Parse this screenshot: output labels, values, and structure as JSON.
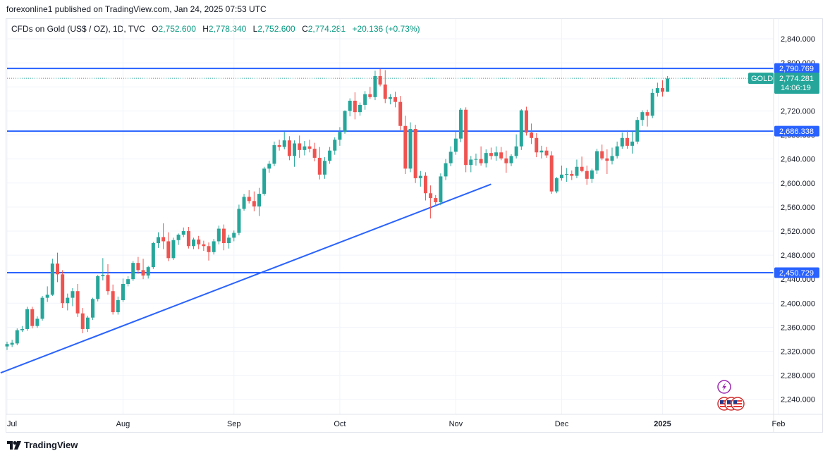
{
  "header": {
    "publisher_text": "forexonline1 published on TradingView.com, Jan 24, 2025 07:53 UTC"
  },
  "legend": {
    "symbol": "CFDs on Gold (US$ / OZ), 1D, TVC",
    "open_label": "O",
    "open": "2,752.600",
    "high_label": "H",
    "high": "2,778.340",
    "low_label": "L",
    "low": "2,752.600",
    "close_label": "C",
    "close": "2,774.281",
    "change": "+20.136 (+0.73%)"
  },
  "footer": {
    "brand": "TradingView"
  },
  "colors": {
    "up": "#26a69a",
    "down": "#ef5350",
    "level_line": "#2962ff",
    "trend_line": "#2962ff",
    "price_tag": "#26a69a",
    "level_tag": "#2962ff"
  },
  "chart_data": {
    "type": "candlestick",
    "symbol": "GOLD",
    "current_price": 2774.281,
    "current_price_label": "2,774.281",
    "countdown": "14:06:19",
    "ylim": [
      2215,
      2873
    ],
    "y_ticks": [
      2240,
      2280,
      2320,
      2360,
      2400,
      2440,
      2480,
      2520,
      2560,
      2600,
      2640,
      2680,
      2720,
      2760,
      2800,
      2840
    ],
    "y_tick_labels": [
      "2,240.000",
      "2,280.000",
      "2,320.000",
      "2,360.000",
      "2,400.000",
      "2,440.000",
      "2,480.000",
      "2,520.000",
      "2,560.000",
      "2,600.000",
      "2,640.000",
      "2,680.000",
      "2,720.000",
      "2,760.000",
      "2,800.000",
      "2,840.000"
    ],
    "x_axis_labels": [
      "Jul",
      "Aug",
      "Sep",
      "Oct",
      "Nov",
      "Dec",
      "2025",
      "Feb"
    ],
    "x_axis_label_bar_index": [
      0,
      23,
      45,
      66,
      89,
      110,
      130,
      153
    ],
    "horizontal_levels": [
      {
        "value": 2790.769,
        "label": "2,790.769"
      },
      {
        "value": 2686.338,
        "label": "2,686.338"
      },
      {
        "value": 2450.729,
        "label": "2,450.729"
      }
    ],
    "trend_line": {
      "start": [
        -1,
        2284
      ],
      "end": [
        96,
        2598
      ]
    },
    "candles": [
      [
        2328,
        2336,
        2322,
        2332
      ],
      [
        2331,
        2339,
        2327,
        2334
      ],
      [
        2333,
        2358,
        2330,
        2355
      ],
      [
        2355,
        2362,
        2352,
        2357
      ],
      [
        2357,
        2394,
        2354,
        2390
      ],
      [
        2390,
        2394,
        2358,
        2362
      ],
      [
        2362,
        2378,
        2359,
        2374
      ],
      [
        2374,
        2412,
        2371,
        2409
      ],
      [
        2409,
        2428,
        2402,
        2414
      ],
      [
        2414,
        2474,
        2412,
        2466
      ],
      [
        2466,
        2484,
        2435,
        2448
      ],
      [
        2448,
        2455,
        2392,
        2400
      ],
      [
        2400,
        2416,
        2388,
        2409
      ],
      [
        2409,
        2425,
        2395,
        2420
      ],
      [
        2420,
        2432,
        2377,
        2383
      ],
      [
        2383,
        2392,
        2350,
        2357
      ],
      [
        2357,
        2379,
        2352,
        2376
      ],
      [
        2376,
        2409,
        2372,
        2407
      ],
      [
        2407,
        2447,
        2403,
        2445
      ],
      [
        2445,
        2475,
        2438,
        2447
      ],
      [
        2447,
        2465,
        2414,
        2420
      ],
      [
        2420,
        2431,
        2381,
        2385
      ],
      [
        2385,
        2411,
        2381,
        2405
      ],
      [
        2405,
        2441,
        2402,
        2432
      ],
      [
        2432,
        2445,
        2428,
        2440
      ],
      [
        2440,
        2470,
        2437,
        2467
      ],
      [
        2467,
        2477,
        2449,
        2455
      ],
      [
        2455,
        2474,
        2440,
        2446
      ],
      [
        2446,
        2462,
        2441,
        2460
      ],
      [
        2460,
        2502,
        2457,
        2500
      ],
      [
        2500,
        2518,
        2492,
        2510
      ],
      [
        2510,
        2533,
        2490,
        2503
      ],
      [
        2503,
        2518,
        2470,
        2475
      ],
      [
        2475,
        2509,
        2472,
        2505
      ],
      [
        2505,
        2516,
        2497,
        2514
      ],
      [
        2514,
        2526,
        2510,
        2520
      ],
      [
        2520,
        2527,
        2491,
        2495
      ],
      [
        2495,
        2509,
        2490,
        2506
      ],
      [
        2506,
        2512,
        2490,
        2498
      ],
      [
        2498,
        2504,
        2487,
        2495
      ],
      [
        2495,
        2501,
        2471,
        2485
      ],
      [
        2485,
        2507,
        2481,
        2503
      ],
      [
        2503,
        2529,
        2498,
        2524
      ],
      [
        2524,
        2531,
        2488,
        2500
      ],
      [
        2500,
        2514,
        2491,
        2509
      ],
      [
        2509,
        2521,
        2503,
        2517
      ],
      [
        2517,
        2564,
        2513,
        2557
      ],
      [
        2557,
        2582,
        2554,
        2577
      ],
      [
        2577,
        2588,
        2566,
        2570
      ],
      [
        2570,
        2586,
        2553,
        2561
      ],
      [
        2561,
        2592,
        2545,
        2582
      ],
      [
        2582,
        2627,
        2579,
        2624
      ],
      [
        2624,
        2637,
        2617,
        2632
      ],
      [
        2632,
        2669,
        2628,
        2663
      ],
      [
        2663,
        2672,
        2654,
        2660
      ],
      [
        2660,
        2685,
        2656,
        2671
      ],
      [
        2671,
        2678,
        2638,
        2645
      ],
      [
        2645,
        2671,
        2627,
        2666
      ],
      [
        2666,
        2679,
        2642,
        2655
      ],
      [
        2655,
        2670,
        2646,
        2661
      ],
      [
        2661,
        2672,
        2651,
        2657
      ],
      [
        2657,
        2667,
        2636,
        2642
      ],
      [
        2642,
        2660,
        2606,
        2614
      ],
      [
        2614,
        2643,
        2607,
        2637
      ],
      [
        2637,
        2660,
        2632,
        2654
      ],
      [
        2654,
        2676,
        2647,
        2672
      ],
      [
        2672,
        2693,
        2662,
        2685
      ],
      [
        2685,
        2721,
        2682,
        2720
      ],
      [
        2720,
        2741,
        2711,
        2737
      ],
      [
        2737,
        2751,
        2706,
        2718
      ],
      [
        2718,
        2734,
        2712,
        2730
      ],
      [
        2730,
        2753,
        2722,
        2748
      ],
      [
        2748,
        2760,
        2740,
        2743
      ],
      [
        2743,
        2787,
        2738,
        2778
      ],
      [
        2778,
        2790,
        2761,
        2764
      ],
      [
        2764,
        2788,
        2733,
        2740
      ],
      [
        2740,
        2748,
        2731,
        2743
      ],
      [
        2743,
        2752,
        2726,
        2735
      ],
      [
        2735,
        2745,
        2688,
        2695
      ],
      [
        2695,
        2712,
        2615,
        2624
      ],
      [
        2624,
        2701,
        2618,
        2690
      ],
      [
        2690,
        2697,
        2600,
        2608
      ],
      [
        2608,
        2620,
        2594,
        2612
      ],
      [
        2612,
        2618,
        2571,
        2583
      ],
      [
        2583,
        2596,
        2541,
        2575
      ],
      [
        2575,
        2580,
        2561,
        2568
      ],
      [
        2568,
        2616,
        2563,
        2611
      ],
      [
        2611,
        2640,
        2605,
        2633
      ],
      [
        2633,
        2661,
        2628,
        2652
      ],
      [
        2652,
        2686,
        2647,
        2674
      ],
      [
        2674,
        2725,
        2668,
        2722
      ],
      [
        2722,
        2726,
        2618,
        2630
      ],
      [
        2630,
        2645,
        2618,
        2639
      ],
      [
        2639,
        2649,
        2629,
        2640
      ],
      [
        2640,
        2661,
        2629,
        2633
      ],
      [
        2633,
        2656,
        2626,
        2650
      ],
      [
        2650,
        2659,
        2639,
        2645
      ],
      [
        2645,
        2661,
        2637,
        2651
      ],
      [
        2651,
        2660,
        2638,
        2641
      ],
      [
        2641,
        2654,
        2617,
        2633
      ],
      [
        2633,
        2648,
        2628,
        2645
      ],
      [
        2645,
        2681,
        2641,
        2661
      ],
      [
        2661,
        2723,
        2655,
        2721
      ],
      [
        2721,
        2727,
        2679,
        2684
      ],
      [
        2684,
        2699,
        2665,
        2675
      ],
      [
        2675,
        2683,
        2643,
        2651
      ],
      [
        2651,
        2662,
        2641,
        2654
      ],
      [
        2654,
        2660,
        2642,
        2646
      ],
      [
        2646,
        2653,
        2582,
        2586
      ],
      [
        2586,
        2610,
        2583,
        2608
      ],
      [
        2608,
        2629,
        2604,
        2614
      ],
      [
        2614,
        2625,
        2602,
        2615
      ],
      [
        2615,
        2621,
        2605,
        2612
      ],
      [
        2612,
        2639,
        2608,
        2627
      ],
      [
        2627,
        2644,
        2618,
        2620
      ],
      [
        2620,
        2629,
        2597,
        2607
      ],
      [
        2607,
        2624,
        2600,
        2621
      ],
      [
        2621,
        2657,
        2615,
        2653
      ],
      [
        2653,
        2664,
        2638,
        2641
      ],
      [
        2641,
        2656,
        2615,
        2637
      ],
      [
        2637,
        2659,
        2631,
        2645
      ],
      [
        2645,
        2669,
        2641,
        2661
      ],
      [
        2661,
        2684,
        2657,
        2675
      ],
      [
        2675,
        2688,
        2657,
        2662
      ],
      [
        2662,
        2686,
        2649,
        2669
      ],
      [
        2669,
        2710,
        2665,
        2705
      ],
      [
        2705,
        2721,
        2695,
        2718
      ],
      [
        2718,
        2722,
        2694,
        2712
      ],
      [
        2712,
        2757,
        2708,
        2750
      ],
      [
        2750,
        2767,
        2744,
        2758
      ],
      [
        2758,
        2771,
        2744,
        2752
      ],
      [
        2752,
        2778,
        2752,
        2774
      ]
    ]
  }
}
